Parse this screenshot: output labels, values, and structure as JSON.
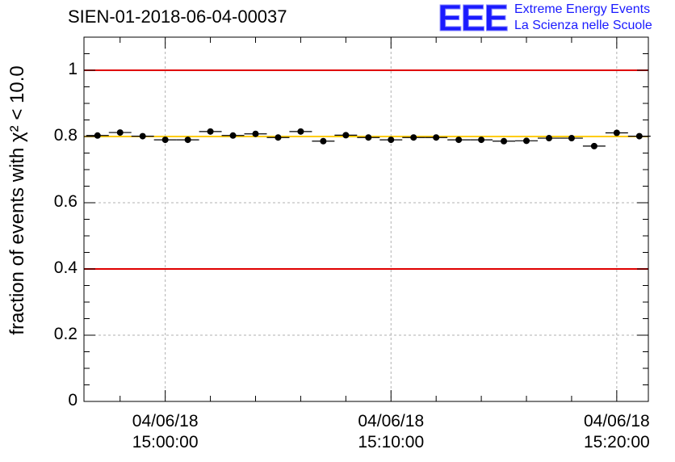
{
  "header": {
    "title": "SIEN-01-2018-06-04-00037",
    "logo_letters": "EEE",
    "logo_line1": "Extreme Energy Events",
    "logo_line2": "La Scienza nelle Scuole"
  },
  "colors": {
    "logo": "#1a1aff",
    "threshold_lines": "#e00000",
    "mean_line": "#ffcc00",
    "points": "#000000",
    "grid": "#b0b0b0"
  },
  "chart_data": {
    "type": "scatter",
    "title": "SIEN-01-2018-06-04-00037",
    "ylabel": "fraction of events with χ² < 10.0",
    "xlabel": "",
    "ylim": [
      0,
      1.1
    ],
    "xlim_minutes": [
      -3.6,
      21.4
    ],
    "y_ticks": [
      "0",
      "0.2",
      "0.4",
      "0.6",
      "0.8",
      "1"
    ],
    "x_tick_minutes": [
      0,
      10,
      20
    ],
    "x_tick_labels": [
      {
        "date": "04/06/18",
        "time": "15:00:00"
      },
      {
        "date": "04/06/18",
        "time": "15:10:00"
      },
      {
        "date": "04/06/18",
        "time": "15:20:00"
      }
    ],
    "bin_width_minutes": 1,
    "x_minutes": [
      -3,
      -2,
      -1,
      0,
      1,
      2,
      3,
      4,
      5,
      6,
      7,
      8,
      9,
      10,
      11,
      12,
      13,
      14,
      15,
      16,
      17,
      18,
      19,
      20,
      21
    ],
    "values": [
      0.803,
      0.812,
      0.801,
      0.79,
      0.79,
      0.815,
      0.803,
      0.808,
      0.797,
      0.815,
      0.786,
      0.804,
      0.797,
      0.79,
      0.797,
      0.797,
      0.79,
      0.79,
      0.786,
      0.787,
      0.795,
      0.795,
      0.771,
      0.811,
      0.801
    ],
    "reference_lines": [
      {
        "y": 1.0,
        "kind": "upper-threshold"
      },
      {
        "y": 0.4,
        "kind": "lower-threshold"
      },
      {
        "y": 0.8,
        "kind": "mean"
      }
    ]
  }
}
